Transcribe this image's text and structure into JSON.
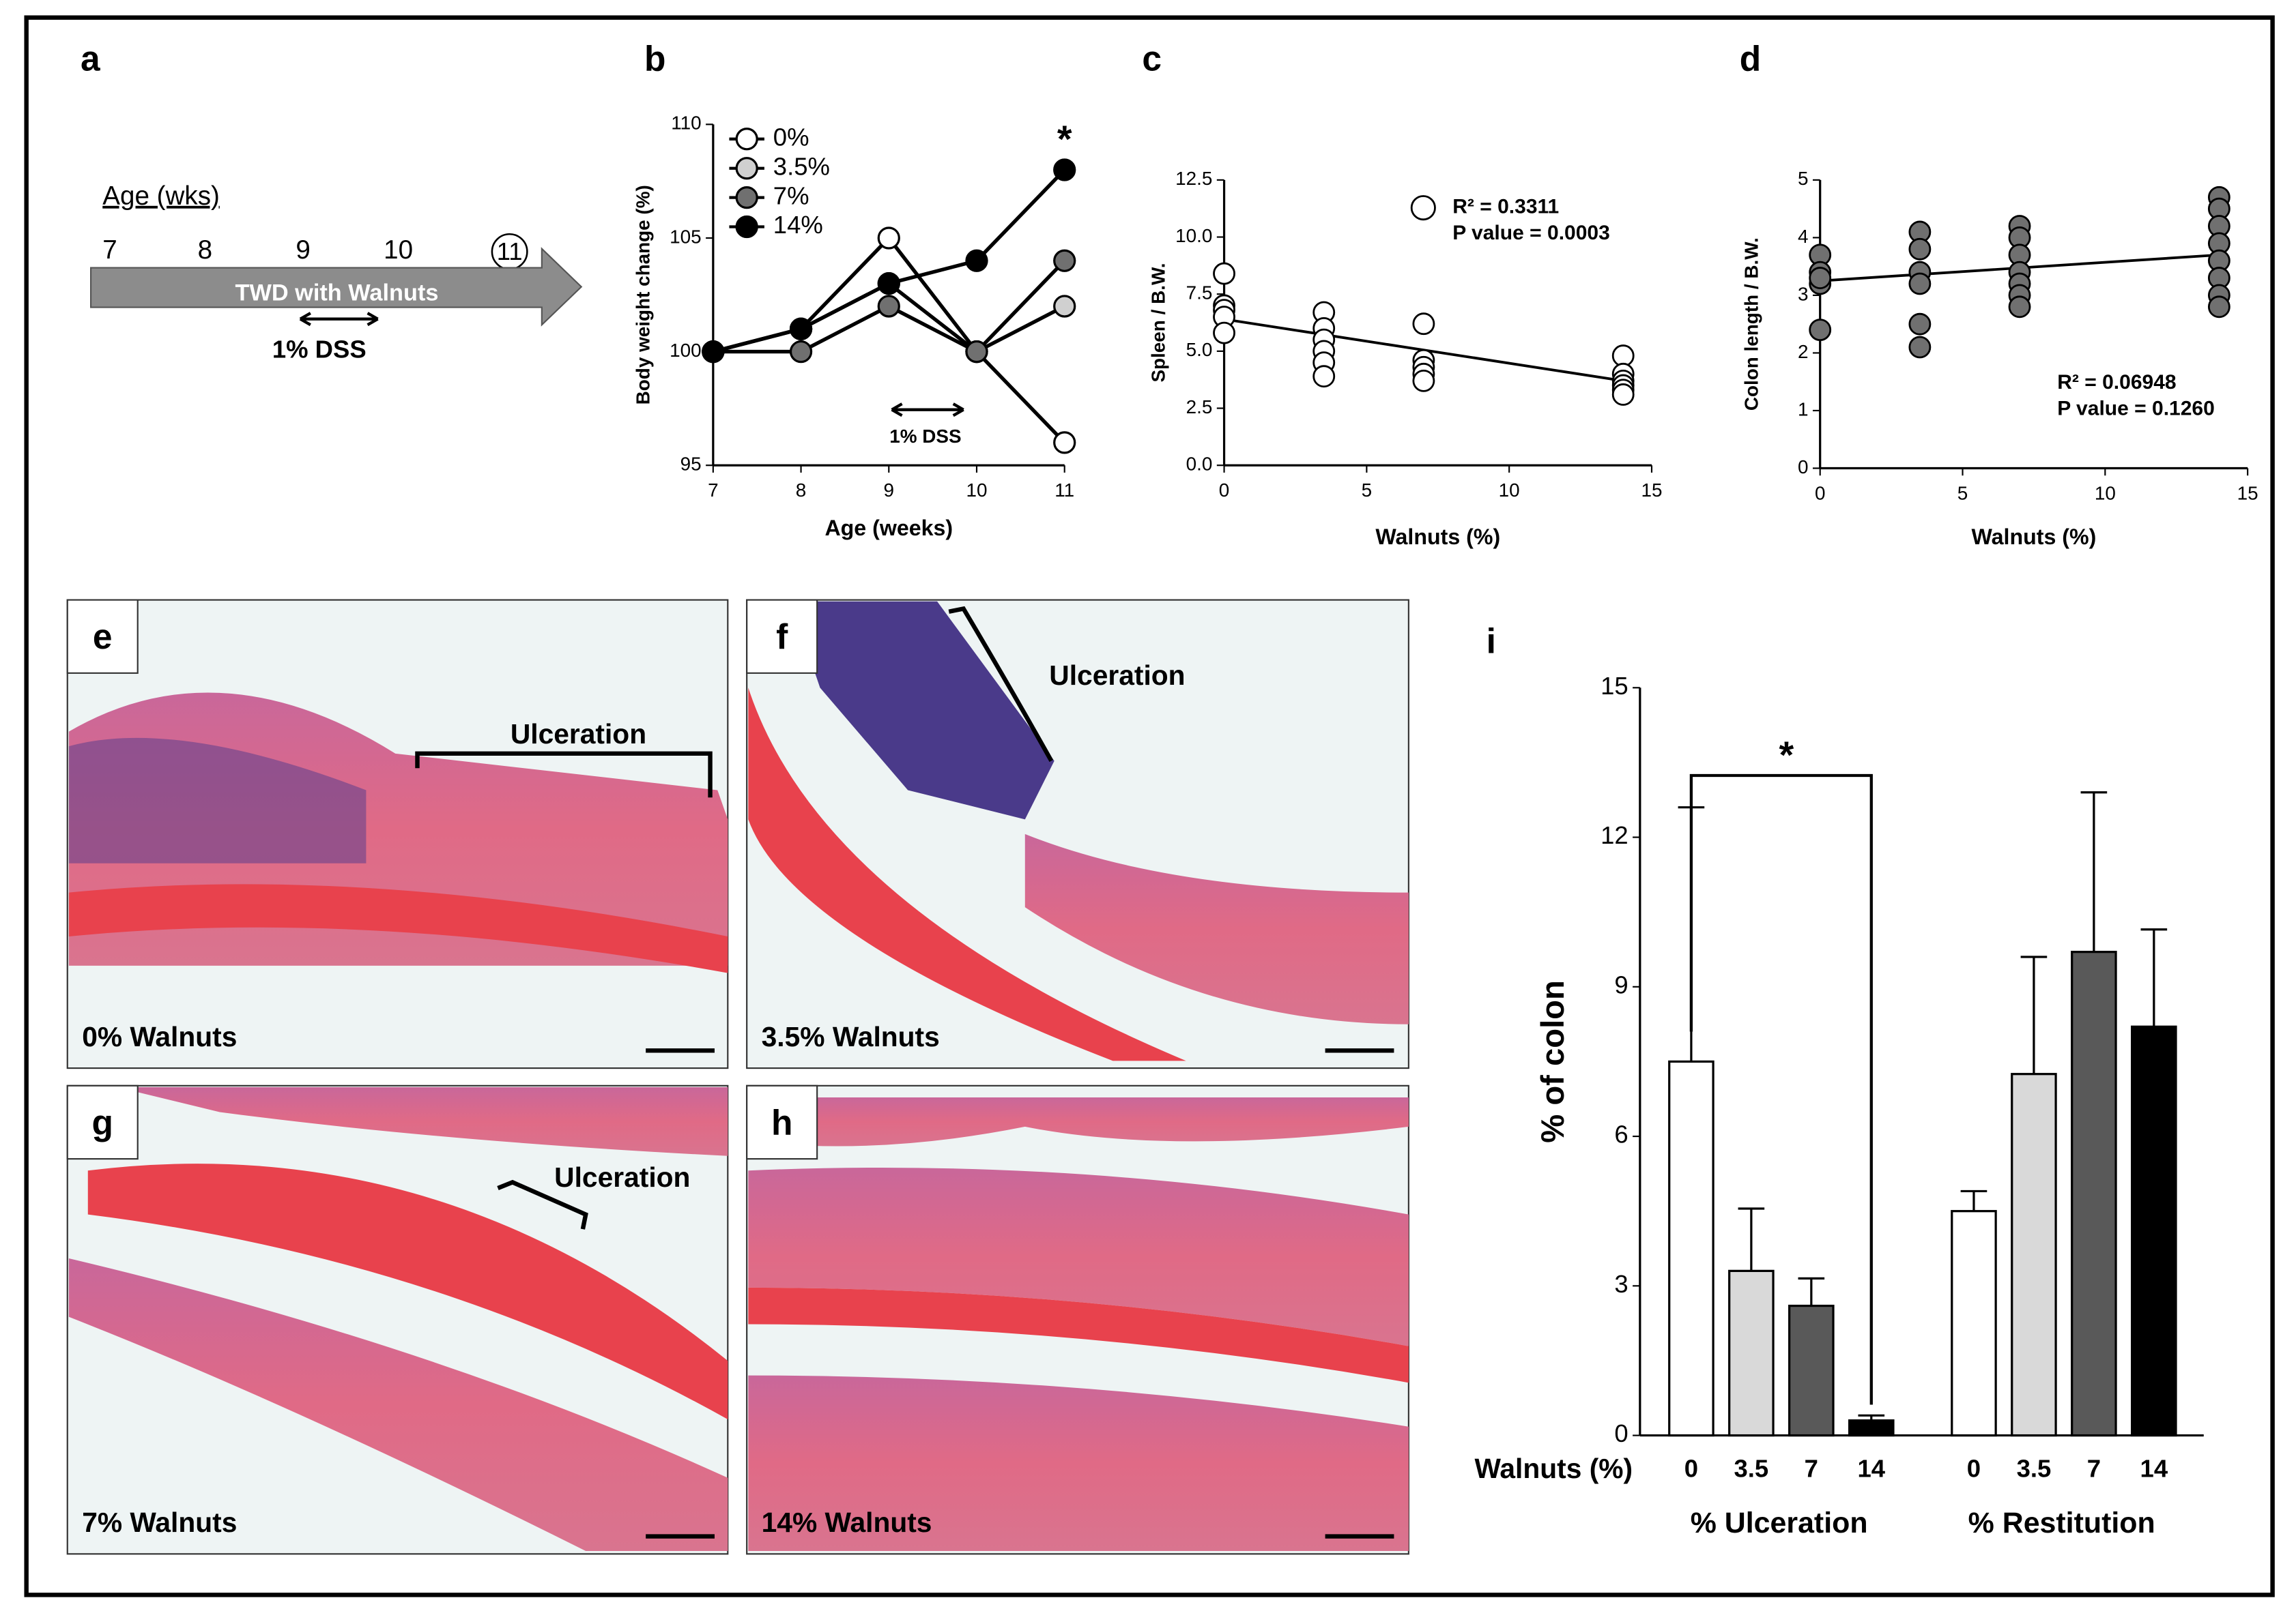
{
  "timeline": {
    "panel": "a",
    "label": "Age (wks)",
    "ages": [
      "7",
      "8",
      "9",
      "10",
      "11"
    ],
    "bar": "TWD with Walnuts",
    "interval": "1% DSS"
  },
  "chart_data": [
    {
      "type": "line",
      "panel": "b",
      "xlabel": "Age (weeks)",
      "ylabel": "Body weight change (%)",
      "x": [
        7,
        8,
        9,
        10,
        11
      ],
      "xlim": [
        7,
        11
      ],
      "xticks": [
        7,
        8,
        9,
        10,
        11
      ],
      "ylim": [
        95,
        110
      ],
      "yticks": [
        95,
        100,
        105,
        110
      ],
      "line_color": "#000000",
      "series": [
        {
          "name": "0%",
          "color": "#ffffff",
          "values": [
            100,
            101,
            105,
            100,
            96
          ]
        },
        {
          "name": "3.5%",
          "color": "#d0d0d0",
          "values": [
            100,
            101,
            103,
            100,
            102
          ]
        },
        {
          "name": "7%",
          "color": "#707070",
          "values": [
            100,
            100,
            102,
            100,
            104
          ]
        },
        {
          "name": "14%",
          "color": "#000000",
          "values": [
            100,
            101,
            103,
            104,
            108
          ]
        }
      ],
      "interval": "1% DSS",
      "star": "*"
    },
    {
      "type": "scatter",
      "panel": "c",
      "xlabel": "Walnuts (%)",
      "ylabel": "Spleen / B.W.",
      "color": "#ffffff",
      "x": [
        0,
        0,
        0,
        0,
        0,
        3.5,
        3.5,
        3.5,
        3.5,
        3.5,
        3.5,
        7,
        7,
        7,
        7,
        7,
        14,
        14,
        14,
        14,
        14,
        14
      ],
      "values": [
        8.4,
        7.0,
        6.8,
        6.5,
        5.8,
        6.7,
        6.0,
        5.5,
        5.0,
        4.5,
        3.9,
        6.2,
        4.6,
        4.3,
        4.0,
        3.7,
        4.8,
        4.0,
        3.7,
        3.5,
        3.3,
        3.1
      ],
      "fit": {
        "x": [
          0,
          14
        ],
        "values": [
          6.4,
          3.7
        ]
      },
      "xlim": [
        0,
        15
      ],
      "xticks": [
        0,
        5,
        10,
        15
      ],
      "ylim": [
        0,
        12.5
      ],
      "yticks": [
        {
          "value": 0,
          "label": "0.0"
        },
        2.5,
        {
          "value": 5,
          "label": "5.0"
        },
        7.5,
        {
          "value": 10,
          "label": "10.0"
        },
        12.5
      ],
      "annotation": [
        "R² = 0.3311",
        "P value = 0.0003"
      ]
    },
    {
      "type": "scatter",
      "panel": "d",
      "xlabel": "Walnuts (%)",
      "ylabel": "Colon length / B.W.",
      "color": "#707070",
      "x": [
        0,
        0,
        0,
        0,
        0,
        3.5,
        3.5,
        3.5,
        3.5,
        3.5,
        3.5,
        7,
        7,
        7,
        7,
        7,
        7,
        7,
        14,
        14,
        14,
        14,
        14,
        14,
        14,
        14
      ],
      "values": [
        3.7,
        3.4,
        3.2,
        3.3,
        2.4,
        4.1,
        3.8,
        3.4,
        3.2,
        2.5,
        2.1,
        4.2,
        4.0,
        3.7,
        3.4,
        3.2,
        3.0,
        2.8,
        4.7,
        4.5,
        4.2,
        3.9,
        3.6,
        3.3,
        3.0,
        2.8
      ],
      "fit": {
        "x": [
          0,
          14
        ],
        "values": [
          3.25,
          3.7
        ]
      },
      "xlim": [
        0,
        15
      ],
      "xticks": [
        0,
        5,
        10,
        15
      ],
      "ylim": [
        0,
        5
      ],
      "yticks": [
        0,
        1,
        2,
        3,
        4,
        5
      ],
      "annotation": [
        "R² = 0.06948",
        "P value = 0.1260"
      ]
    },
    {
      "type": "bar",
      "panel": "i",
      "xlabel": "Walnuts (%)",
      "ylabel": "% of colon",
      "categories": [
        "0",
        "3.5",
        "7",
        "14",
        "0",
        "3.5",
        "7",
        "14"
      ],
      "groups": [
        "% Ulceration",
        "% Restitution"
      ],
      "values": [
        7.5,
        3.3,
        2.6,
        0.3,
        4.5,
        7.25,
        9.7,
        8.2
      ],
      "errors": [
        5.1,
        1.25,
        0.55,
        0.1,
        0.4,
        2.35,
        3.2,
        1.95
      ],
      "colors": [
        "#ffffff",
        "#d9d9d9",
        "#595959",
        "#000000"
      ],
      "ylim": [
        0,
        15
      ],
      "yticks": [
        0,
        3,
        6,
        9,
        12,
        15
      ],
      "star": "*"
    }
  ],
  "micrographs": [
    {
      "panel": "e",
      "label": "0% Walnuts",
      "annotation": "Ulceration"
    },
    {
      "panel": "f",
      "label": "3.5% Walnuts",
      "annotation": "Ulceration"
    },
    {
      "panel": "g",
      "label": "7% Walnuts",
      "annotation": "Ulceration"
    },
    {
      "panel": "h",
      "label": "14% Walnuts"
    }
  ]
}
